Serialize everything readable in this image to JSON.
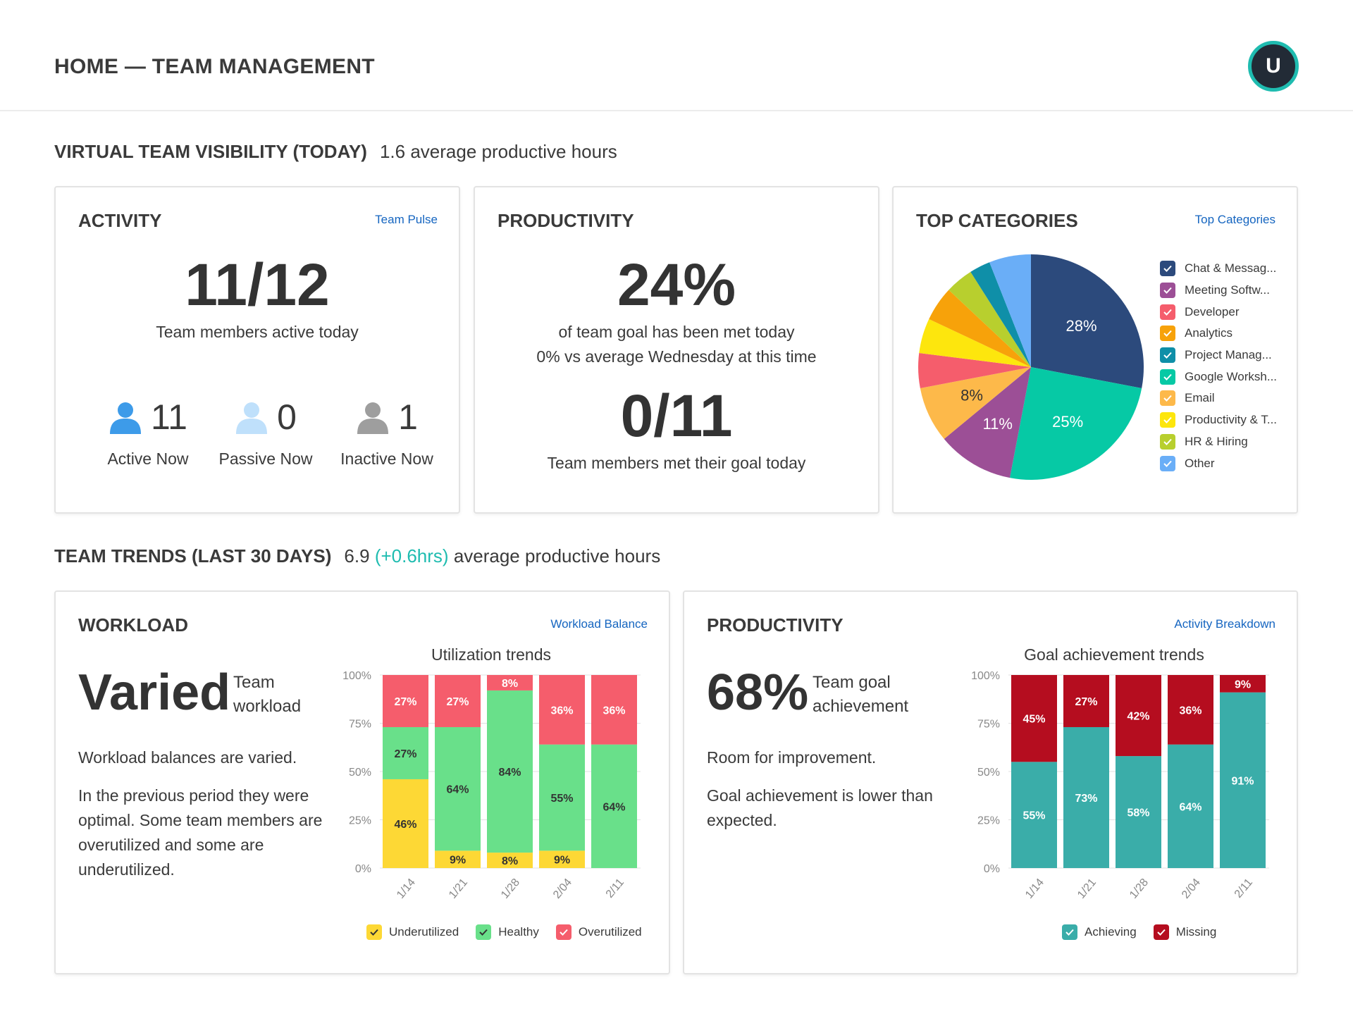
{
  "header": {
    "title": "HOME — TEAM MANAGEMENT",
    "avatar_initial": "U"
  },
  "visibility": {
    "heading": "VIRTUAL TEAM VISIBILITY (TODAY)",
    "summary": "1.6 average productive hours"
  },
  "activity": {
    "title": "ACTIVITY",
    "link": "Team Pulse",
    "big": "11/12",
    "sub": "Team members active today",
    "stats": [
      {
        "icon": "person-active-icon",
        "value": "11",
        "label": "Active Now",
        "color": "#3d9be9"
      },
      {
        "icon": "person-passive-icon",
        "value": "0",
        "label": "Passive Now",
        "color": "#bfe0fb"
      },
      {
        "icon": "person-inactive-icon",
        "value": "1",
        "label": "Inactive Now",
        "color": "#9e9e9e"
      }
    ]
  },
  "productivity_today": {
    "title": "PRODUCTIVITY",
    "big": "24%",
    "line1": "of team goal has been met today",
    "line2": "0% vs average Wednesday at this time",
    "big2": "0/11",
    "sub2": "Team members met their goal today"
  },
  "categories": {
    "title": "TOP CATEGORIES",
    "link": "Top Categories",
    "chart_data": {
      "type": "pie",
      "slices": [
        {
          "name": "Chat & Messag...",
          "value": 28,
          "color": "#2c4a7c",
          "label": "28%"
        },
        {
          "name": "Meeting Softw...",
          "value": 11,
          "color": "#9c4f96",
          "label": "11%"
        },
        {
          "name": "Developer",
          "value": 5,
          "color": "#f55d6c",
          "label": ""
        },
        {
          "name": "Analytics",
          "value": 5,
          "color": "#f7a20a",
          "label": ""
        },
        {
          "name": "Project Manag...",
          "value": 3,
          "color": "#0f8fa8",
          "label": ""
        },
        {
          "name": "Google Worksh...",
          "value": 25,
          "color": "#06c9a5",
          "label": "25%"
        },
        {
          "name": "Email",
          "value": 8,
          "color": "#fdb94a",
          "label": "8%"
        },
        {
          "name": "Productivity & T...",
          "value": 5,
          "color": "#fde60d",
          "label": ""
        },
        {
          "name": "HR & Hiring",
          "value": 4,
          "color": "#b8cf2e",
          "label": ""
        },
        {
          "name": "Other",
          "value": 6,
          "color": "#6aaef7",
          "label": ""
        }
      ],
      "order": [
        "Chat & Messag...",
        "Google Worksh...",
        "Meeting Softw...",
        "Email",
        "Developer",
        "Productivity & T...",
        "Analytics",
        "HR & Hiring",
        "Project Manag...",
        "Other"
      ]
    }
  },
  "trends": {
    "heading": "TEAM TRENDS (LAST 30 DAYS)",
    "value": "6.9",
    "delta": "(+0.6hrs)",
    "summary": "average productive hours"
  },
  "workload": {
    "title": "WORKLOAD",
    "link": "Workload Balance",
    "big": "Varied",
    "side_label_1": "Team",
    "side_label_2": "workload",
    "para1": "Workload balances are varied.",
    "para2": "In the previous period they were optimal. Some team members are overutilized and some are underutilized.",
    "chart_data": {
      "type": "bar",
      "stacked": true,
      "title": "Utilization trends",
      "categories": [
        "1/14",
        "1/21",
        "1/28",
        "2/04",
        "2/11"
      ],
      "yticks": [
        "0%",
        "25%",
        "50%",
        "75%",
        "100%"
      ],
      "ylim": [
        0,
        100
      ],
      "series": [
        {
          "name": "Underutilized",
          "color": "#fdd835",
          "values": [
            46,
            9,
            8,
            9,
            0
          ]
        },
        {
          "name": "Healthy",
          "color": "#69e08a",
          "values": [
            27,
            64,
            84,
            55,
            64
          ]
        },
        {
          "name": "Overutilized",
          "color": "#f55d6c",
          "values": [
            27,
            27,
            8,
            36,
            36
          ]
        }
      ]
    }
  },
  "productivity_trend": {
    "title": "PRODUCTIVITY",
    "link": "Activity Breakdown",
    "big": "68%",
    "side_label_1": "Team goal",
    "side_label_2": "achievement",
    "para1": "Room for improvement.",
    "para2": "Goal achievement is lower than expected.",
    "chart_data": {
      "type": "bar",
      "stacked": true,
      "title": "Goal achievement trends",
      "categories": [
        "1/14",
        "1/21",
        "1/28",
        "2/04",
        "2/11"
      ],
      "yticks": [
        "0%",
        "25%",
        "50%",
        "75%",
        "100%"
      ],
      "ylim": [
        0,
        100
      ],
      "series": [
        {
          "name": "Achieving",
          "color": "#3aada9",
          "values": [
            55,
            73,
            58,
            64,
            91
          ]
        },
        {
          "name": "Missing",
          "color": "#b50d1f",
          "values": [
            45,
            27,
            42,
            36,
            9
          ]
        }
      ]
    }
  }
}
